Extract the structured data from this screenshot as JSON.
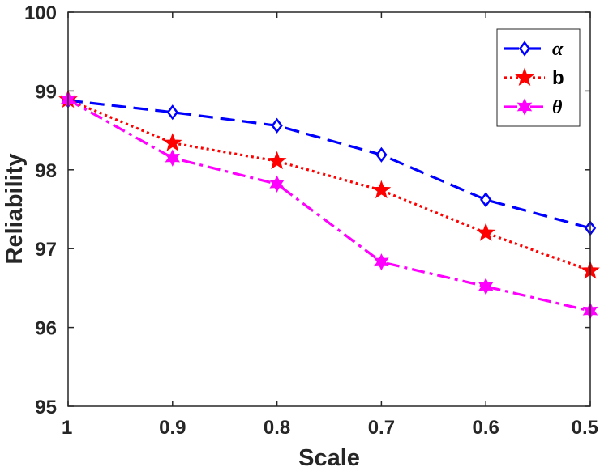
{
  "chart_data": {
    "type": "line",
    "title": "",
    "xlabel": "Scale",
    "ylabel": "Reliability",
    "x": [
      1,
      0.9,
      0.8,
      0.7,
      0.6,
      0.5
    ],
    "x_tick_labels": [
      "1",
      "0.9",
      "0.8",
      "0.7",
      "0.6",
      "0.5"
    ],
    "y_tick_labels": [
      "95",
      "96",
      "97",
      "98",
      "99",
      "100"
    ],
    "xlim": [
      1,
      0.5
    ],
    "ylim": [
      95,
      100
    ],
    "grid": false,
    "legend_position": "top-right",
    "series": [
      {
        "name": "α",
        "values": [
          98.88,
          98.73,
          98.56,
          98.19,
          97.62,
          97.26
        ],
        "color": "#0000ff",
        "line": "dashed",
        "marker": "diamond"
      },
      {
        "name": "b",
        "values": [
          98.89,
          98.34,
          98.11,
          97.74,
          97.2,
          96.72
        ],
        "color": "#ff0000",
        "line": "dotted",
        "marker": "star"
      },
      {
        "name": "θ",
        "values": [
          98.89,
          98.15,
          97.82,
          96.83,
          96.52,
          96.21
        ],
        "color": "#ff00ff",
        "line": "dashdot",
        "marker": "hexagram"
      }
    ]
  }
}
